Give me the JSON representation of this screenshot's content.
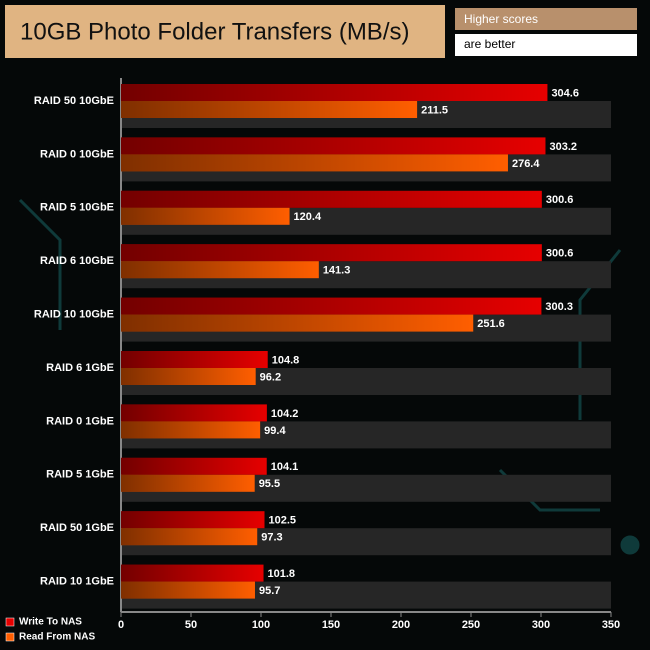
{
  "chart_data": {
    "type": "bar",
    "orientation": "horizontal",
    "title": "10GB Photo Folder Transfers (MB/s)",
    "note_top": "Higher scores",
    "note_bottom": "are better",
    "categories": [
      "RAID 50 10GbE",
      "RAID 0 10GbE",
      "RAID 5 10GbE",
      "RAID 6 10GbE",
      "RAID 10 10GbE",
      "RAID 6 1GbE",
      "RAID 0 1GbE",
      "RAID 5 1GbE",
      "RAID 50 1GbE",
      "RAID 10 1GbE"
    ],
    "series": [
      {
        "name": "Write To NAS",
        "color": "#e60000",
        "values": [
          304.6,
          303.2,
          300.6,
          300.6,
          300.3,
          104.8,
          104.2,
          104.1,
          102.5,
          101.8
        ]
      },
      {
        "name": "Read From NAS",
        "color": "#ff5e00",
        "values": [
          211.5,
          276.4,
          120.4,
          141.3,
          251.6,
          96.2,
          99.4,
          95.5,
          97.3,
          95.7
        ]
      }
    ],
    "xlim": [
      0,
      350
    ],
    "xticks": [
      0,
      50,
      100,
      150,
      200,
      250,
      300,
      350
    ],
    "legend": "bottom-left"
  }
}
